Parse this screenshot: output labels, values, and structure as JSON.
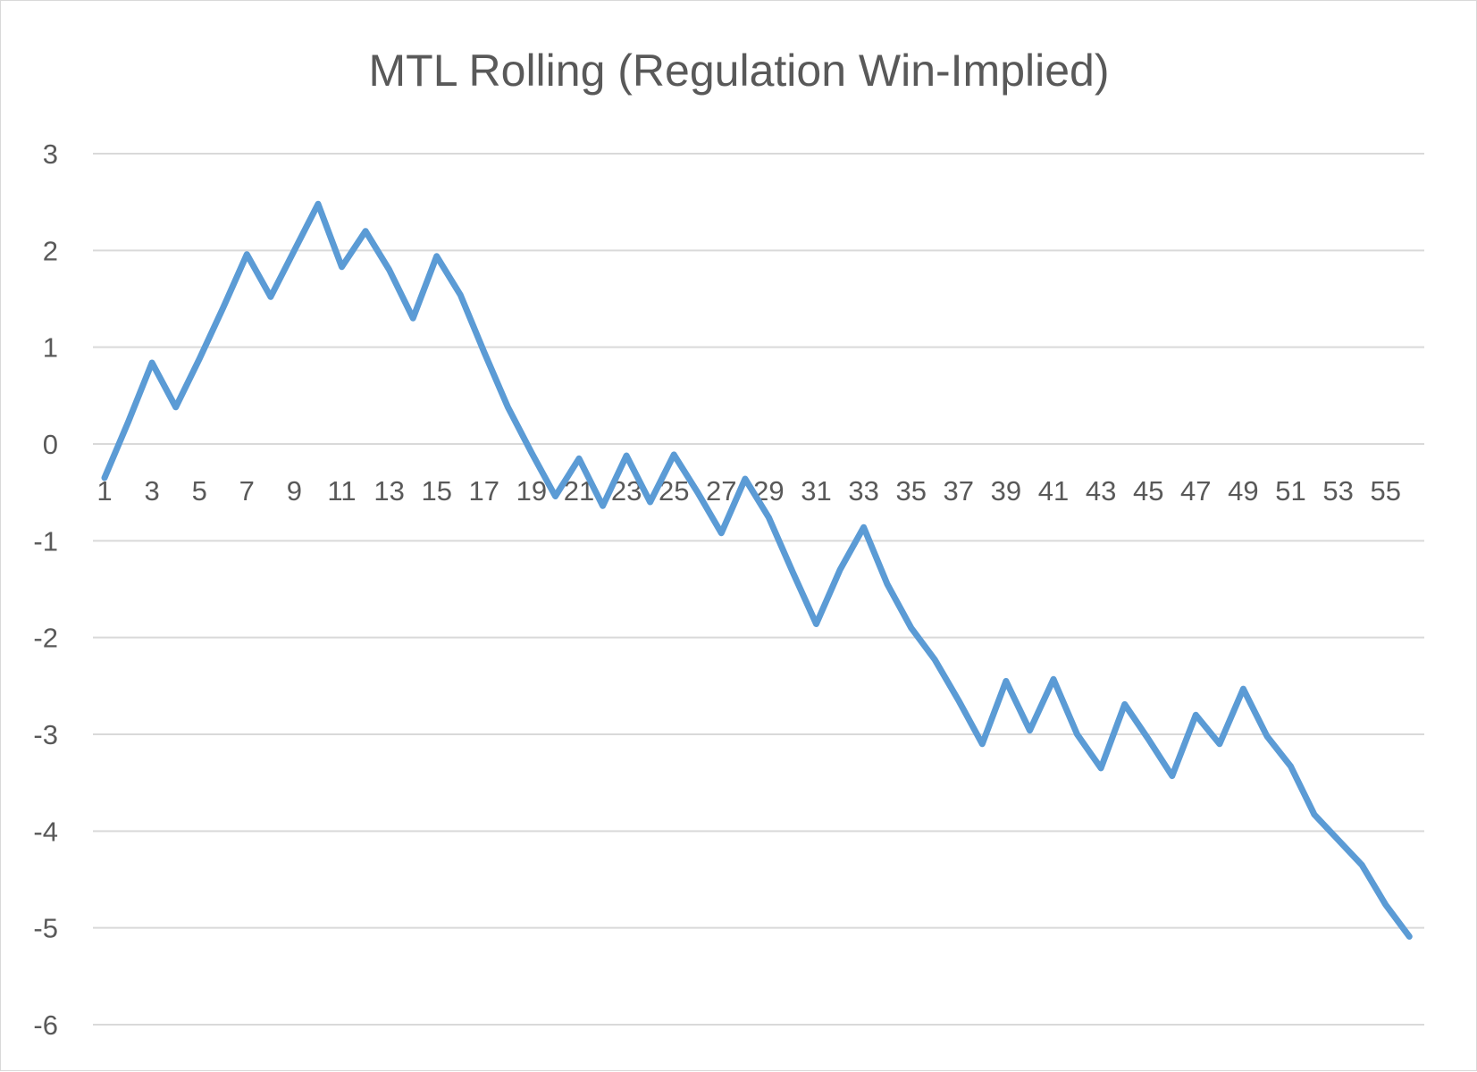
{
  "chart_data": {
    "type": "line",
    "title": "MTL Rolling (Regulation Win-Implied)",
    "xlabel": "",
    "ylabel": "",
    "ylim": [
      -6,
      3
    ],
    "yticks": [
      "3",
      "2",
      "1",
      "0",
      "-1",
      "-2",
      "-3",
      "-4",
      "-5",
      "-6"
    ],
    "ytick_values": [
      3,
      2,
      1,
      0,
      -1,
      -2,
      -3,
      -4,
      -5,
      -6
    ],
    "xticks": [
      "1",
      "3",
      "5",
      "7",
      "9",
      "11",
      "13",
      "15",
      "17",
      "19",
      "21",
      "23",
      "25",
      "27",
      "29",
      "31",
      "33",
      "35",
      "37",
      "39",
      "41",
      "43",
      "45",
      "47",
      "49",
      "51",
      "53",
      "55"
    ],
    "xtick_values": [
      1,
      3,
      5,
      7,
      9,
      11,
      13,
      15,
      17,
      19,
      21,
      23,
      25,
      27,
      29,
      31,
      33,
      35,
      37,
      39,
      41,
      43,
      45,
      47,
      49,
      51,
      53,
      55
    ],
    "grid": true,
    "legend": "none",
    "colors": {
      "line": "#5b9bd5",
      "grid": "#d9d9d9",
      "text": "#595959"
    },
    "series": [
      {
        "x": [
          1,
          2,
          3,
          4,
          5,
          6,
          7,
          8,
          9,
          10,
          11,
          12,
          13,
          14,
          15,
          16,
          17,
          18,
          19,
          20,
          21,
          22,
          23,
          24,
          25,
          26,
          27,
          28,
          29,
          30,
          31,
          32,
          33,
          34,
          35,
          36,
          37,
          38,
          39,
          40,
          41,
          42,
          43,
          44,
          45,
          46,
          47,
          48,
          49,
          50,
          51,
          52,
          53,
          54,
          55,
          56
        ],
        "values": [
          -0.35,
          0.23,
          0.84,
          0.38,
          0.88,
          1.41,
          1.96,
          1.52,
          2.0,
          2.48,
          1.83,
          2.2,
          1.8,
          1.3,
          1.94,
          1.54,
          0.95,
          0.38,
          -0.09,
          -0.54,
          -0.15,
          -0.64,
          -0.12,
          -0.6,
          -0.11,
          -0.5,
          -0.92,
          -0.36,
          -0.76,
          -1.32,
          -1.86,
          -1.3,
          -0.86,
          -1.45,
          -1.9,
          -2.23,
          -2.65,
          -3.1,
          -2.45,
          -2.96,
          -2.43,
          -3.0,
          -3.35,
          -2.69,
          -3.05,
          -3.43,
          -2.8,
          -3.1,
          -2.53,
          -3.02,
          -3.33,
          -3.83,
          -4.09,
          -4.35,
          -4.76,
          -5.09
        ]
      }
    ]
  }
}
